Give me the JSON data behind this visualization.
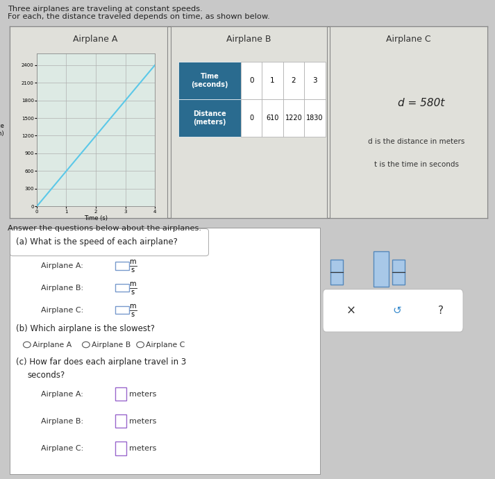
{
  "title_line1": "Three airplanes are traveling at constant speeds.",
  "title_line2": "For each, the distance traveled depends on time, as shown below.",
  "answer_label": "Answer the questions below about the airplanes.",
  "airplane_a": {
    "title": "Airplane A",
    "x_label": "Time (s)",
    "y_label": "Distance\n(m)",
    "x_data": [
      0,
      1,
      2,
      3,
      4
    ],
    "y_data": [
      0,
      600,
      1200,
      1800,
      2400
    ],
    "x_ticks": [
      0,
      1,
      2,
      3,
      4
    ],
    "y_ticks": [
      0,
      300,
      600,
      900,
      1200,
      1500,
      1800,
      2100,
      2400
    ],
    "line_color": "#5bc8e8",
    "speed": 600
  },
  "airplane_b": {
    "title": "Airplane B",
    "header_bg": "#2a6b8f",
    "header_text_color": "#ffffff",
    "time_values": [
      "0",
      "1",
      "2",
      "3"
    ],
    "distance_values": [
      "0",
      "610",
      "1220",
      "1830"
    ],
    "speed": 610
  },
  "airplane_c": {
    "title": "Airplane C",
    "equation": "d = 580t",
    "note_line1": "d is the distance in meters",
    "note_line2": "t is the time in seconds",
    "speed": 580
  },
  "section_a_title": "(a) What is the speed of each airplane?",
  "section_b_title": "(b) Which airplane is the slowest?",
  "section_c_title_line1": "(c) How far does each airplane travel in 3",
  "section_c_title_line2": "    seconds?",
  "radio_options": [
    "Airplane A",
    "Airplane B",
    "Airplane C"
  ],
  "bg_color": "#c8c8c8",
  "top_panel_bg": "#e0e0da",
  "graph_bg": "#ddeae4",
  "bottom_panel_bg": "#e8e8e8",
  "white": "#ffffff",
  "header_bg": "#2a6b8f",
  "border_color": "#888888",
  "input_border": "#7799cc",
  "input_border2": "#9966cc"
}
